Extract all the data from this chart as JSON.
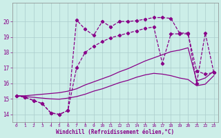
{
  "xlabel": "Windchill (Refroidissement éolien,°C)",
  "bg_color": "#cceee8",
  "grid_color": "#aacccc",
  "line_color": "#880088",
  "xlim": [
    -0.5,
    23.5
  ],
  "ylim": [
    13.5,
    21.2
  ],
  "xticks": [
    0,
    1,
    2,
    3,
    4,
    5,
    6,
    7,
    8,
    9,
    10,
    11,
    12,
    13,
    14,
    15,
    16,
    17,
    18,
    19,
    20,
    21,
    22,
    23
  ],
  "yticks": [
    14,
    15,
    16,
    17,
    18,
    19,
    20
  ],
  "series": [
    {
      "x": [
        0,
        1,
        2,
        3,
        4,
        5,
        6,
        7,
        8,
        9,
        10,
        11,
        12,
        13,
        14,
        15,
        16,
        17,
        18,
        19,
        20,
        21,
        22,
        23
      ],
      "y": [
        15.2,
        15.1,
        14.9,
        14.7,
        14.1,
        14.0,
        14.25,
        17.0,
        18.0,
        18.4,
        18.7,
        18.95,
        19.1,
        19.25,
        19.4,
        19.55,
        19.65,
        17.3,
        19.2,
        19.2,
        19.2,
        16.8,
        16.6,
        16.7
      ],
      "linestyle": "--",
      "marker": true,
      "linewidth": 0.9
    },
    {
      "x": [
        0,
        1,
        2,
        3,
        4,
        5,
        6,
        7,
        8,
        9,
        10,
        11,
        12,
        13,
        14,
        15,
        16,
        17,
        18,
        19,
        20,
        21,
        22,
        23
      ],
      "y": [
        15.2,
        15.1,
        14.9,
        14.7,
        14.1,
        14.0,
        14.25,
        20.1,
        19.5,
        19.1,
        20.0,
        19.65,
        20.0,
        20.0,
        20.05,
        20.15,
        20.25,
        20.25,
        20.2,
        19.25,
        19.25,
        16.0,
        19.25,
        16.7
      ],
      "linestyle": "--",
      "marker": true,
      "linewidth": 0.9
    },
    {
      "x": [
        0,
        1,
        2,
        3,
        4,
        5,
        6,
        7,
        8,
        9,
        10,
        11,
        12,
        13,
        14,
        15,
        16,
        17,
        18,
        19,
        20,
        21,
        22,
        23
      ],
      "y": [
        15.2,
        15.2,
        15.25,
        15.3,
        15.35,
        15.4,
        15.5,
        15.65,
        15.9,
        16.1,
        16.3,
        16.5,
        16.75,
        16.95,
        17.2,
        17.45,
        17.65,
        17.85,
        18.05,
        18.15,
        18.3,
        16.15,
        16.35,
        16.8
      ],
      "linestyle": "-",
      "marker": false,
      "linewidth": 0.9
    },
    {
      "x": [
        0,
        1,
        2,
        3,
        4,
        5,
        6,
        7,
        8,
        9,
        10,
        11,
        12,
        13,
        14,
        15,
        16,
        17,
        18,
        19,
        20,
        21,
        22,
        23
      ],
      "y": [
        15.2,
        15.15,
        15.1,
        15.05,
        15.0,
        14.98,
        15.05,
        15.15,
        15.3,
        15.5,
        15.65,
        15.85,
        16.05,
        16.2,
        16.4,
        16.55,
        16.65,
        16.6,
        16.5,
        16.35,
        16.25,
        15.85,
        15.95,
        16.5
      ],
      "linestyle": "-",
      "marker": false,
      "linewidth": 0.9
    }
  ]
}
